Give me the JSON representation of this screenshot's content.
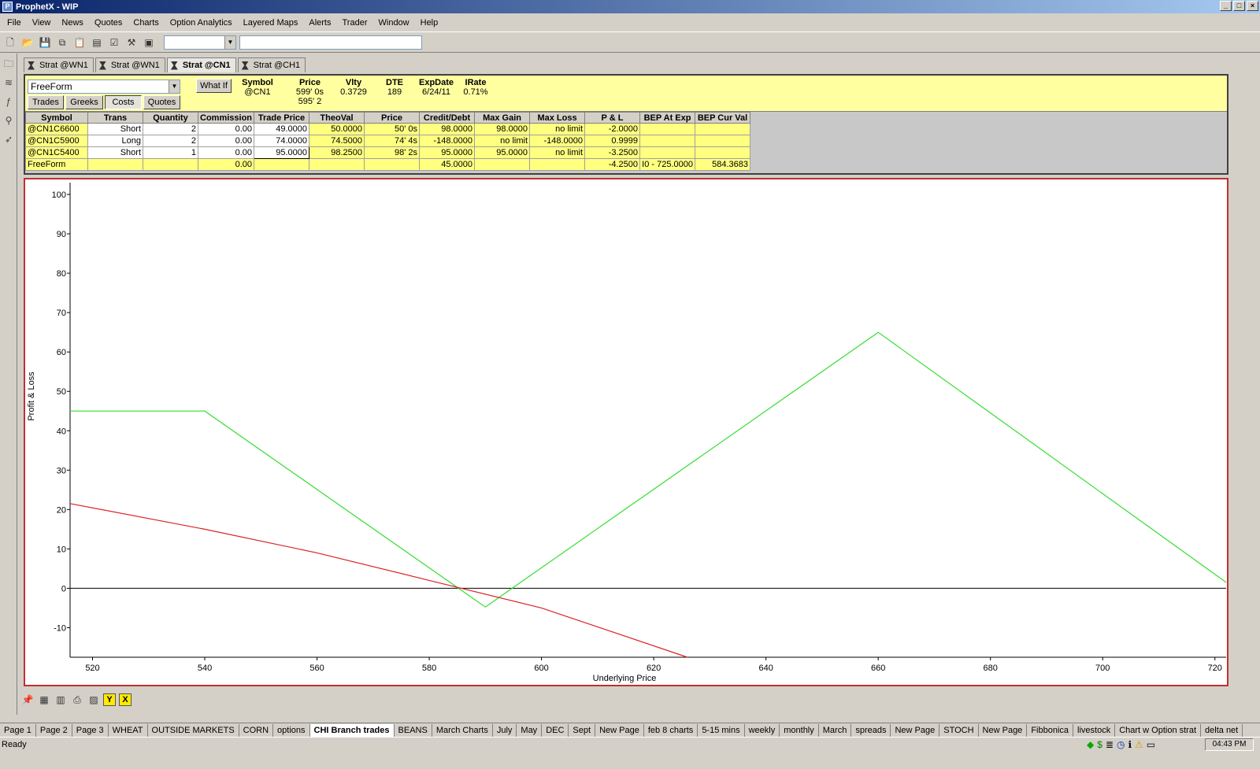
{
  "window": {
    "title": "ProphetX - WIP"
  },
  "menu": [
    "File",
    "View",
    "News",
    "Quotes",
    "Charts",
    "Option Analytics",
    "Layered Maps",
    "Alerts",
    "Trader",
    "Window",
    "Help"
  ],
  "strategy_tabs": [
    {
      "label": "Strat @WN1",
      "active": false
    },
    {
      "label": "Strat @WN1",
      "active": false
    },
    {
      "label": "Strat @CN1",
      "active": true
    },
    {
      "label": "Strat @CH1",
      "active": false
    }
  ],
  "header": {
    "strategy_type": "FreeForm",
    "what_if_label": "What If",
    "view_buttons": [
      "Trades",
      "Greeks",
      "Costs",
      "Quotes"
    ],
    "active_view": "Costs",
    "symbol_label": "Symbol",
    "symbol": "@CN1",
    "price_label": "Price",
    "price": "599' 0s",
    "price2": "595' 2",
    "vlty_label": "Vlty",
    "vlty": "0.3729",
    "dte_label": "DTE",
    "dte": "189",
    "expdate_label": "ExpDate",
    "expdate": "6/24/11",
    "irate_label": "IRate",
    "irate": "0.71%"
  },
  "grid": {
    "columns": [
      "Symbol",
      "Trans",
      "Quantity",
      "Commission",
      "Trade Price",
      "TheoVal",
      "Price",
      "Credit/Debt",
      "Max Gain",
      "Max Loss",
      "P & L",
      "BEP At Exp",
      "BEP Cur Val"
    ],
    "rows": [
      [
        "@CN1C6600",
        "Short",
        "2",
        "0.00",
        "49.0000",
        "50.0000",
        "50' 0s",
        "98.0000",
        "98.0000",
        "no limit",
        "-2.0000",
        "",
        ""
      ],
      [
        "@CN1C5900",
        "Long",
        "2",
        "0.00",
        "74.0000",
        "74.5000",
        "74' 4s",
        "-148.0000",
        "no limit",
        "-148.0000",
        "0.9999",
        "",
        ""
      ],
      [
        "@CN1C5400",
        "Short",
        "1",
        "0.00",
        "95.0000",
        "98.2500",
        "98' 2s",
        "95.0000",
        "95.0000",
        "no limit",
        "-3.2500",
        "",
        ""
      ],
      [
        "FreeForm",
        "",
        "",
        "0.00",
        "",
        "",
        "",
        "45.0000",
        "",
        "",
        "-4.2500",
        "I0 - 725.0000",
        "584.3683"
      ]
    ]
  },
  "chart_data": {
    "type": "line",
    "xlabel": "Underlying Price",
    "ylabel": "Profit & Loss",
    "xlim": [
      516,
      722
    ],
    "ylim": [
      -17.5,
      103
    ],
    "xticks": [
      520,
      540,
      560,
      580,
      600,
      620,
      640,
      660,
      680,
      700,
      720
    ],
    "yticks": [
      -10,
      0,
      10,
      20,
      30,
      40,
      50,
      60,
      70,
      80,
      90,
      100
    ],
    "series": [
      {
        "color": "#33dd33",
        "points": [
          [
            516,
            45
          ],
          [
            540,
            45
          ],
          [
            590,
            -4.75
          ],
          [
            660,
            65
          ],
          [
            722,
            1.5
          ]
        ]
      },
      {
        "color": "#dd2222",
        "points": [
          [
            516,
            21.5
          ],
          [
            540,
            15
          ],
          [
            560,
            9
          ],
          [
            580,
            2
          ],
          [
            600,
            -5
          ],
          [
            626,
            -17.5
          ]
        ]
      }
    ],
    "zero_line_color": "#000000"
  },
  "page_tabs": [
    "Page 1",
    "Page 2",
    "Page 3",
    "WHEAT",
    "OUTSIDE MARKETS",
    "CORN",
    "options",
    "CHI Branch trades",
    "BEANS",
    "March Charts",
    "July",
    "May",
    "DEC",
    "Sept",
    "New Page",
    "feb 8 charts",
    "5-15 mins",
    "weekly",
    "monthly",
    "March",
    "spreads",
    "New Page",
    "STOCH",
    "New Page",
    "Fibbonica",
    "livestock",
    "Chart w Option strat",
    "delta net"
  ],
  "active_page_tab": "CHI Branch trades",
  "status": {
    "text": "Ready",
    "time": "04:43 PM"
  }
}
